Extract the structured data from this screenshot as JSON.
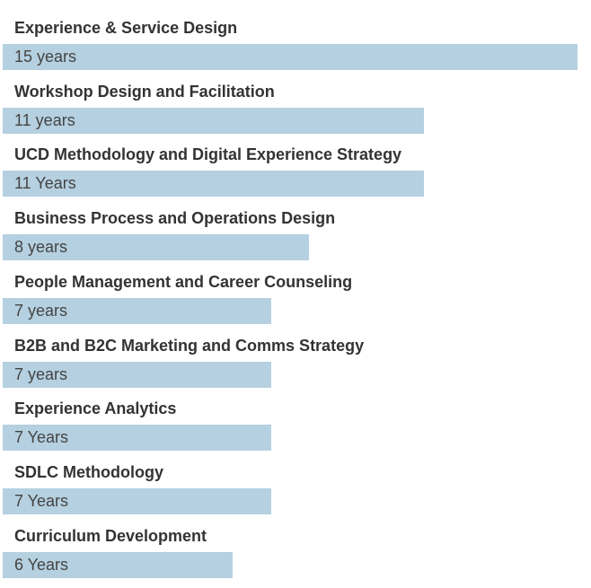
{
  "chart_data": {
    "type": "bar",
    "orientation": "horizontal",
    "bar_color": "#b5d0e0",
    "categories": [
      "Experience & Service Design",
      "Workshop Design and Facilitation",
      "UCD Methodology and Digital Experience Strategy",
      "Business Process and Operations Design",
      "People Management and Career Counseling",
      "B2B and B2C Marketing and Comms Strategy",
      "Experience Analytics",
      "SDLC Methodology",
      "Curriculum Development"
    ],
    "values": [
      15,
      11,
      11,
      8,
      7,
      7,
      7,
      7,
      6
    ],
    "value_labels": [
      "15 years",
      "11 years",
      "11 Years",
      "8 years",
      "7 years",
      "7 years",
      "7 Years",
      "7 Years",
      "6 Years"
    ],
    "xlim": [
      0,
      15
    ]
  }
}
